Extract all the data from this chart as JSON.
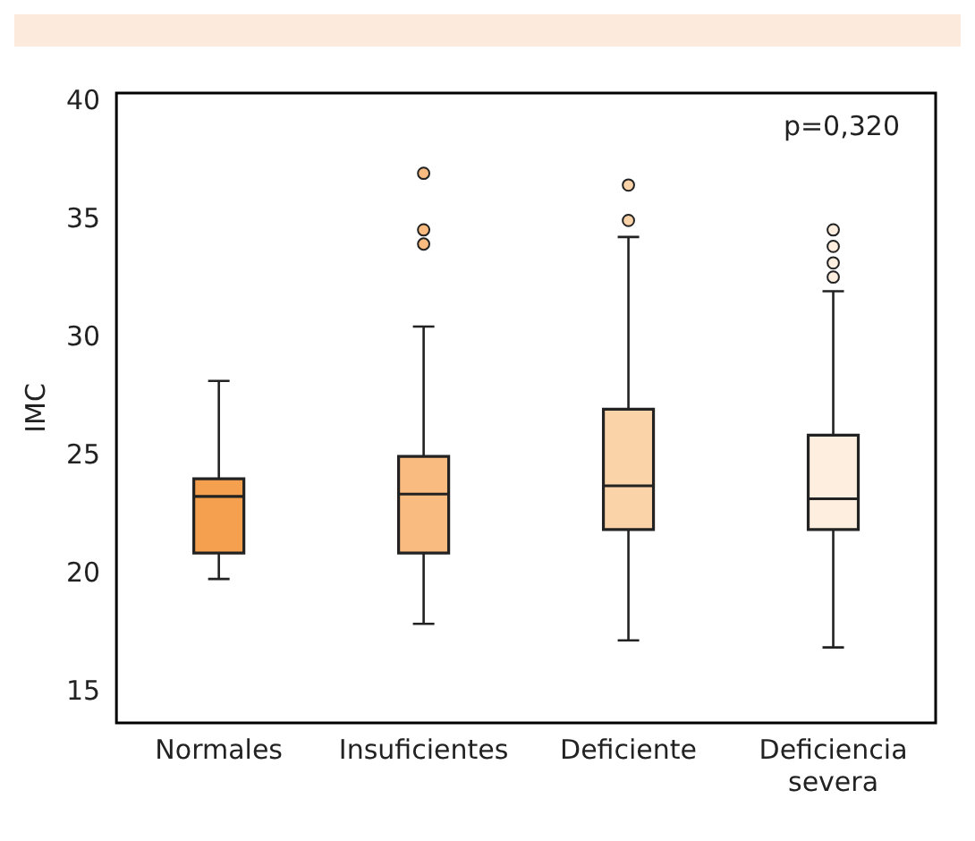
{
  "chart_data": {
    "type": "box",
    "ylabel": "IMC",
    "categories": [
      "Normales",
      "Insuficientes",
      "Deficiente",
      "Deficiencia severa"
    ],
    "colors": [
      "#f4a04f",
      "#f9bb80",
      "#fbd3a9",
      "#fdeedf"
    ],
    "boxes": [
      {
        "low": 19.8,
        "q1": 20.9,
        "median": 23.3,
        "q3": 24.05,
        "high": 28.2
      },
      {
        "low": 17.9,
        "q1": 20.9,
        "median": 23.4,
        "q3": 25.0,
        "high": 30.5,
        "outliers": [
          34.0,
          34.6,
          37.0
        ]
      },
      {
        "low": 17.2,
        "q1": 21.9,
        "median": 23.75,
        "q3": 27.0,
        "high": 34.3,
        "outliers": [
          35.0,
          36.5
        ]
      },
      {
        "low": 16.9,
        "q1": 21.9,
        "median": 23.2,
        "q3": 25.9,
        "high": 32.0,
        "outliers": [
          32.6,
          33.2,
          33.9,
          34.6
        ]
      }
    ],
    "ylim": [
      13.7,
      40.4
    ],
    "yticks": [
      15,
      20,
      25,
      30,
      35,
      40
    ],
    "grid": false,
    "legend": false,
    "annotations": [
      "p=0,320"
    ]
  }
}
